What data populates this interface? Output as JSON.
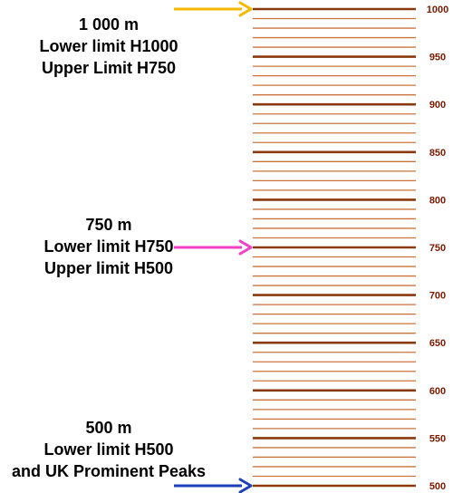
{
  "scale": {
    "min": 500,
    "max": 1000,
    "minor_step": 10,
    "major_step": 50,
    "tick_labels": [
      "1000",
      "950",
      "900",
      "850",
      "800",
      "750",
      "700",
      "650",
      "600",
      "550",
      "500"
    ],
    "minor_color": "#C9743F",
    "major_color": "#8B3A0F",
    "label_color": "#7A1A00"
  },
  "markers": [
    {
      "value": 1000,
      "arrow_color": "#F5B800",
      "lines": [
        "1 000 m",
        "Lower limit H1000",
        "Upper Limit H750"
      ]
    },
    {
      "value": 750,
      "arrow_color": "#F23FC6",
      "lines": [
        "750 m",
        "Lower limit H750",
        "Upper limit H500"
      ]
    },
    {
      "value": 500,
      "arrow_color": "#1F3FB8",
      "lines": [
        "500 m",
        "Lower limit H500",
        "and UK Prominent Peaks"
      ]
    }
  ]
}
